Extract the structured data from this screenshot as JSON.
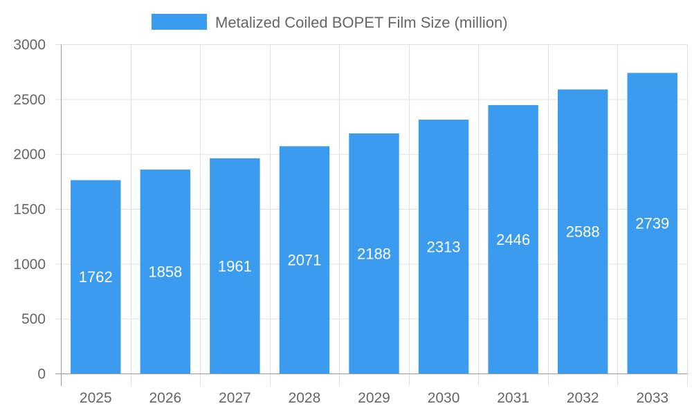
{
  "chart_data": {
    "type": "bar",
    "title": "",
    "xlabel": "",
    "ylabel": "",
    "categories": [
      "2025",
      "2026",
      "2027",
      "2028",
      "2029",
      "2030",
      "2031",
      "2032",
      "2033"
    ],
    "series": [
      {
        "name": "Metalized Coiled BOPET Film Size (million)",
        "values": [
          1762,
          1858,
          1961,
          2071,
          2188,
          2313,
          2446,
          2588,
          2739
        ],
        "color": "#3a9bef"
      }
    ],
    "ylim": [
      0,
      3000
    ],
    "yticks": [
      "0",
      "500",
      "1000",
      "1500",
      "2000",
      "2500",
      "3000"
    ],
    "grid": true,
    "legend": "top-center",
    "data_labels": "inside-center"
  }
}
